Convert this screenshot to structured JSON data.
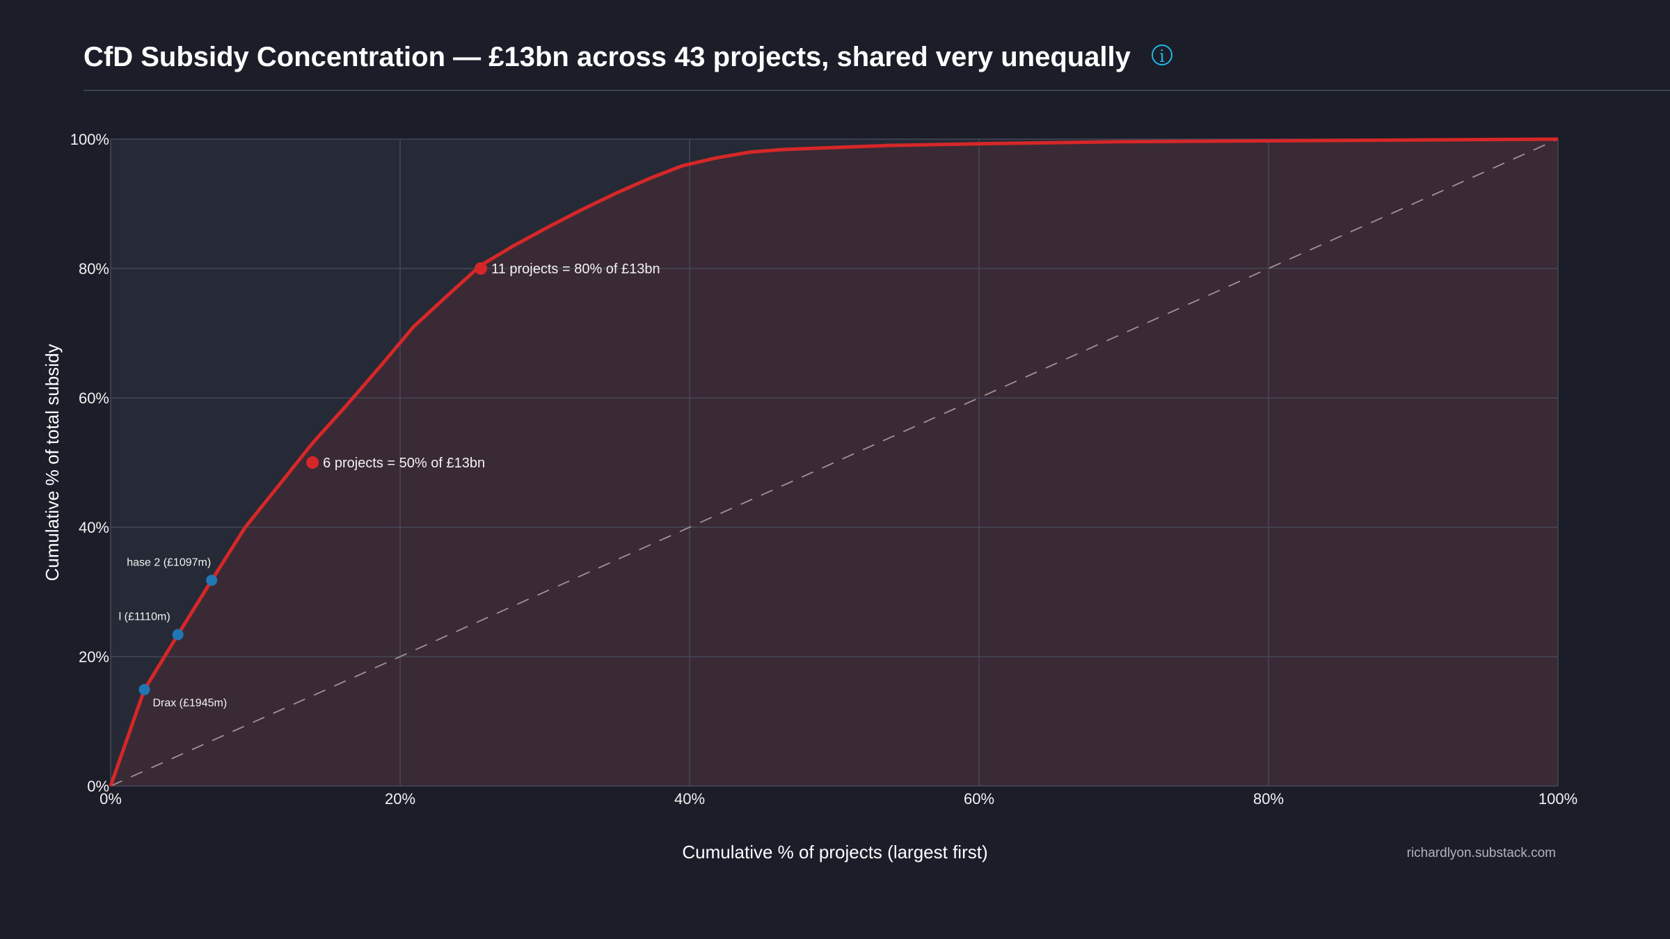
{
  "header": {
    "title": "CfD Subsidy Concentration — £13bn across 43 projects, shared very unequally",
    "info_icon": "info-circle-icon"
  },
  "watermark": "richardlyon.substack.com",
  "colors": {
    "background": "#1b1d29",
    "curve": "#d62728",
    "highlight": "#1f77b4",
    "area_under": "#3a2a35",
    "plot_bg": "#252a36"
  },
  "chart_data": {
    "type": "line",
    "title": "CfD Subsidy Concentration — £13bn across 43 projects, shared very unequally",
    "xlabel": "Cumulative % of projects (largest first)",
    "ylabel": "Cumulative % of total subsidy",
    "xlim": [
      0,
      100
    ],
    "ylim": [
      0,
      100
    ],
    "x_ticks": [
      "0%",
      "20%",
      "40%",
      "60%",
      "80%",
      "100%"
    ],
    "y_ticks": [
      "0%",
      "20%",
      "40%",
      "60%",
      "80%",
      "100%"
    ],
    "grid": true,
    "series": [
      {
        "x": [
          0,
          2.33,
          4.65,
          6.98,
          9.3,
          11.63,
          13.95,
          16.28,
          18.6,
          20.93,
          23.26,
          25.58,
          27.91,
          30.23,
          32.56,
          34.88,
          37.21,
          39.53,
          41.86,
          44.19,
          46.51,
          48.84,
          53.49,
          60.47,
          69.77,
          100
        ],
        "y": [
          0,
          14.9,
          23.4,
          31.8,
          40,
          46.5,
          53,
          58.8,
          64.8,
          71,
          75.8,
          80.5,
          83.6,
          86.4,
          89.1,
          91.6,
          93.9,
          95.9,
          97.1,
          98,
          98.4,
          98.6,
          99,
          99.3,
          99.6,
          100
        ]
      }
    ],
    "reference_line": {
      "name": "",
      "x": [
        0,
        100
      ],
      "y": [
        0,
        100
      ],
      "style": "dashed"
    },
    "highlighted_projects": [
      {
        "label": "Drax (£1945m)",
        "x": 2.33,
        "y": 14.9
      },
      {
        "label": "l (£1110m)",
        "x": 4.65,
        "y": 23.4
      },
      {
        "label": "hase 2 (£1097m)",
        "x": 6.98,
        "y": 31.8
      }
    ],
    "annotations": [
      {
        "text": "6 projects = 50% of £13bn",
        "x": 13.95,
        "y": 50
      },
      {
        "text": "11 projects = 80% of £13bn",
        "x": 25.58,
        "y": 80
      }
    ]
  }
}
